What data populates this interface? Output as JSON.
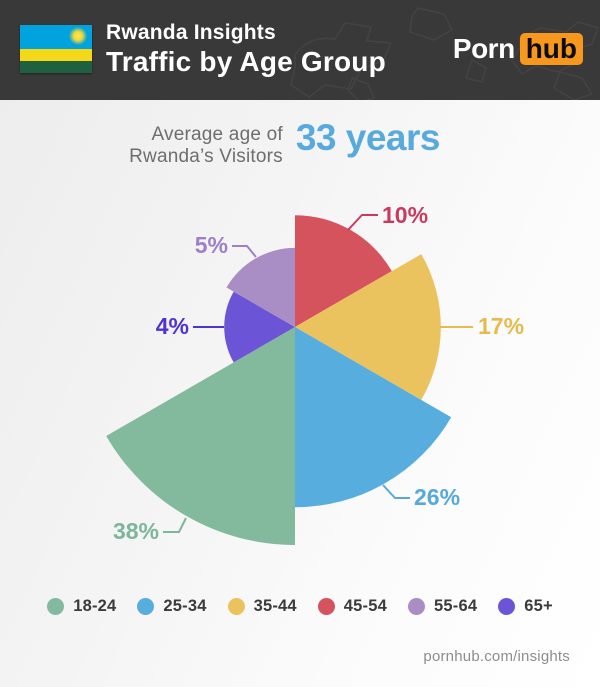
{
  "header": {
    "title_line1": "Rwanda Insights",
    "title_line2": "Traffic by Age Group",
    "logo_part1": "Porn",
    "logo_part2": "hub",
    "logo_accent_color": "#f7971d",
    "background_color": "#393939",
    "flag": {
      "country": "Rwanda",
      "colors": {
        "blue": "#00a3de",
        "yellow": "#f5d818",
        "green": "#1f6040",
        "sun": "#ffec4d"
      }
    }
  },
  "average_age": {
    "label_line1": "Average age of",
    "label_line2": "Rwanda’s Visitors",
    "value": "33 years",
    "value_color": "#58aadd"
  },
  "chart_data": {
    "type": "pie",
    "variant": "polar-area-rose",
    "title": "Traffic by Age Group",
    "unit": "percent",
    "radius_scale": "sqrt",
    "start_angle_deg": 0,
    "sector_angle_deg": 60,
    "slices": [
      {
        "label": "45-54",
        "value": 10,
        "display": "10%",
        "color": "#d5535d",
        "label_color": "#c93b5e"
      },
      {
        "label": "35-44",
        "value": 17,
        "display": "17%",
        "color": "#eac35f",
        "label_color": "#e6ba4d"
      },
      {
        "label": "25-34",
        "value": 26,
        "display": "26%",
        "color": "#57aede",
        "label_color": "#57a9dd"
      },
      {
        "label": "18-24",
        "value": 38,
        "display": "38%",
        "color": "#83ba9e",
        "label_color": "#7db69b"
      },
      {
        "label": "65+",
        "value": 4,
        "display": "4%",
        "color": "#6b55d6",
        "label_color": "#5132d1"
      },
      {
        "label": "55-64",
        "value": 5,
        "display": "5%",
        "color": "#a98ec6",
        "label_color": "#9d80c7"
      }
    ],
    "legend": [
      {
        "label": "18-24",
        "color": "#83ba9e"
      },
      {
        "label": "25-34",
        "color": "#57aede"
      },
      {
        "label": "35-44",
        "color": "#eac35f"
      },
      {
        "label": "45-54",
        "color": "#d5535d"
      },
      {
        "label": "55-64",
        "color": "#a98ec6"
      },
      {
        "label": "65+",
        "color": "#6b55d6"
      }
    ],
    "legend_position": "bottom"
  },
  "footer": {
    "url": "pornhub.com/insights"
  }
}
